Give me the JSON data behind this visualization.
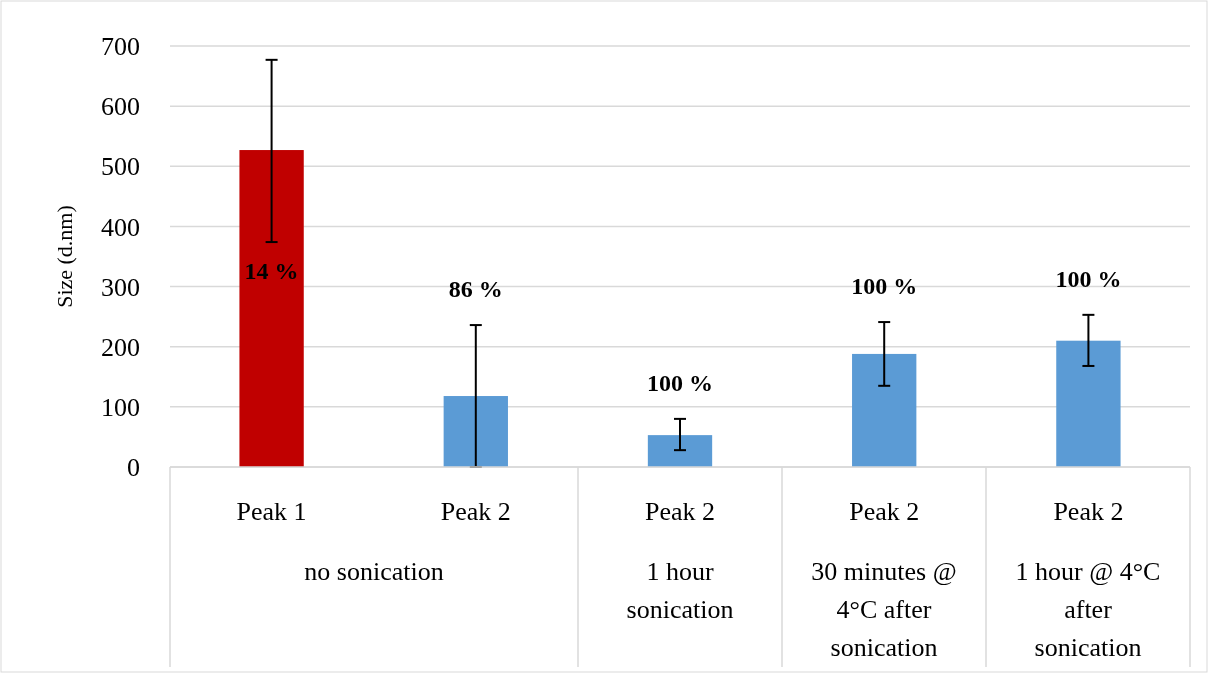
{
  "chart_data": {
    "type": "bar",
    "ylabel": "Size (d.nm)",
    "categories": [
      "Peak 1",
      "Peak 2",
      "Peak 2",
      "Peak 2",
      "Peak 2"
    ],
    "values": [
      527,
      118,
      53,
      188,
      210
    ],
    "colors": [
      "#c00000",
      "#5b9bd5",
      "#5b9bd5",
      "#5b9bd5",
      "#5b9bd5"
    ],
    "errors": [
      [
        374,
        677
      ],
      [
        0,
        236
      ],
      [
        28,
        80
      ],
      [
        135,
        241
      ],
      [
        168,
        253
      ]
    ],
    "annotations": [
      "14 %",
      "86 %",
      "100 %",
      "100 %",
      "100 %",
      "no sonication",
      "1 hour sonication",
      "30 minutes @ 4°C after sonication",
      "1 hour @ 4°C after sonication"
    ],
    "ylim": [
      0,
      700
    ],
    "yticks": [
      0,
      100,
      200,
      300,
      400,
      500,
      600,
      700
    ],
    "grid": "y"
  }
}
